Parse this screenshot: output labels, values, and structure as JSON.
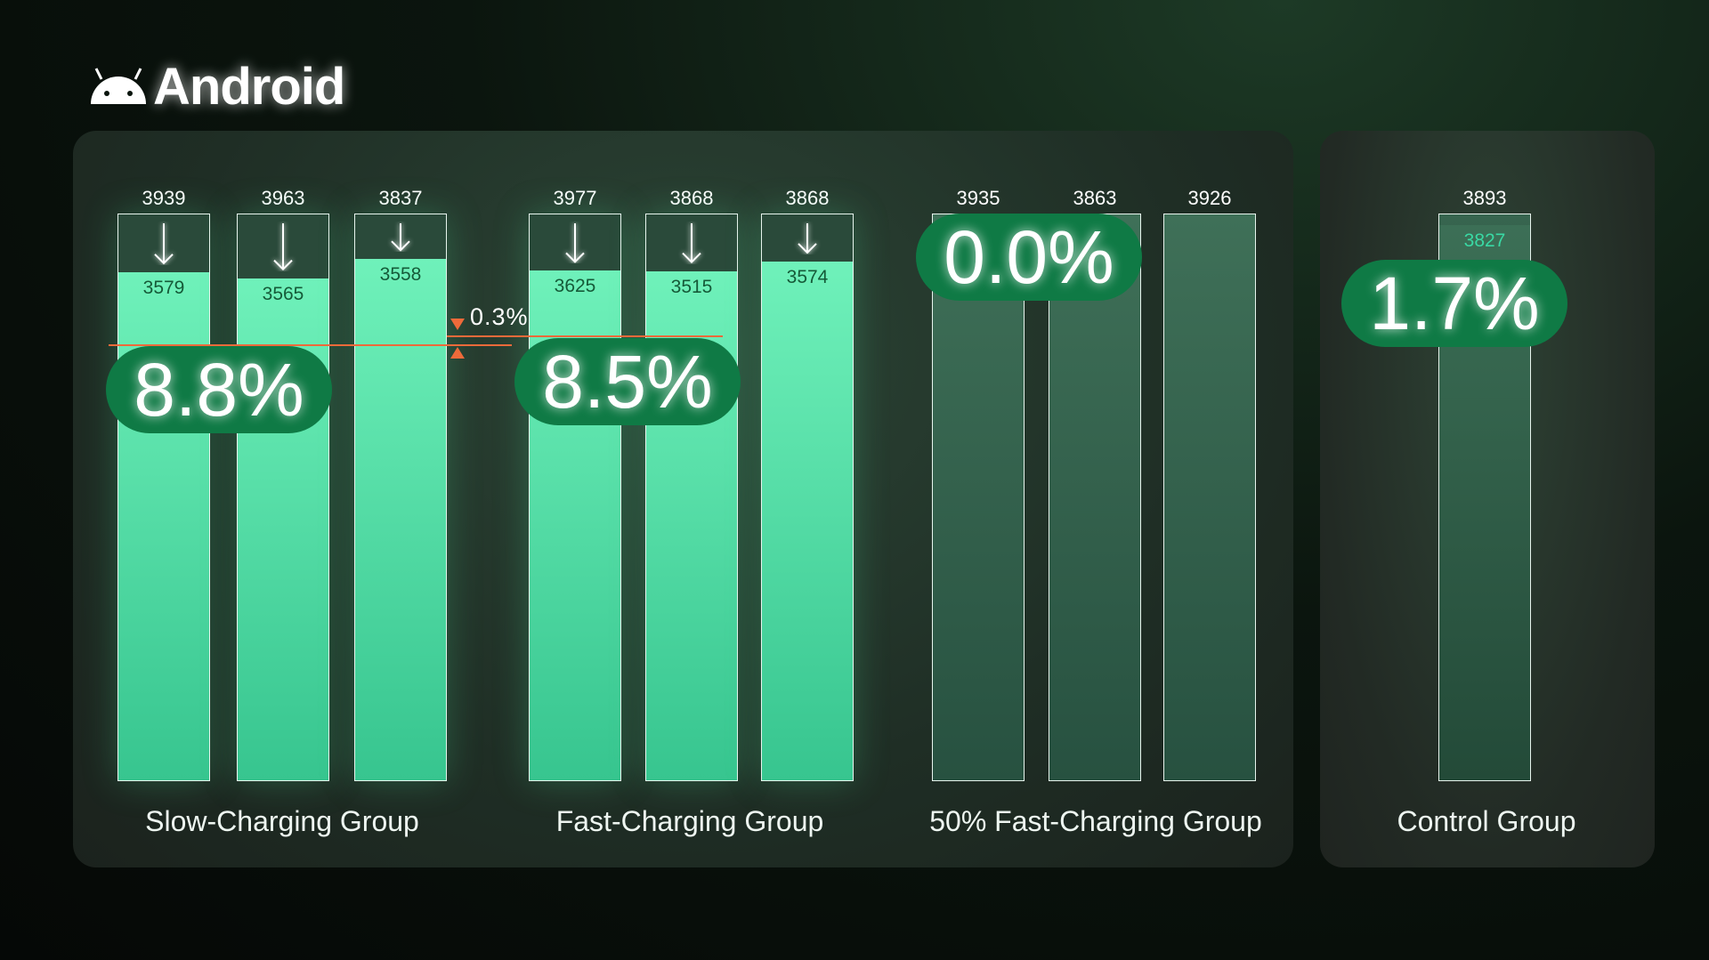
{
  "header": {
    "title": "Android",
    "icon": "android-icon"
  },
  "colors": {
    "fill": "#6ff1ba",
    "pill": "#0f7a45",
    "marker": "#ee6a3a",
    "control_value": "#39d9a4"
  },
  "chart_data": {
    "type": "bar",
    "groups": [
      {
        "name": "Slow-Charging Group",
        "drop_label": "8.8%",
        "bars": [
          {
            "start": 3939,
            "end": 3579
          },
          {
            "start": 3963,
            "end": 3565
          },
          {
            "start": 3837,
            "end": 3558
          }
        ]
      },
      {
        "name": "Fast-Charging Group",
        "drop_label": "8.5%",
        "bars": [
          {
            "start": 3977,
            "end": 3625
          },
          {
            "start": 3868,
            "end": 3515
          },
          {
            "start": 3868,
            "end": 3574
          }
        ]
      },
      {
        "name": "50% Fast-Charging Group",
        "drop_label": "0.0%",
        "bars": [
          {
            "start": 3935
          },
          {
            "start": 3863
          },
          {
            "start": 3926
          }
        ]
      },
      {
        "name": "Control Group",
        "drop_label": "1.7%",
        "bars": [
          {
            "start": 3893,
            "end": 3827
          }
        ]
      }
    ],
    "annotation": {
      "label": "0.3%",
      "between": [
        "Slow-Charging Group",
        "Fast-Charging Group"
      ]
    }
  }
}
